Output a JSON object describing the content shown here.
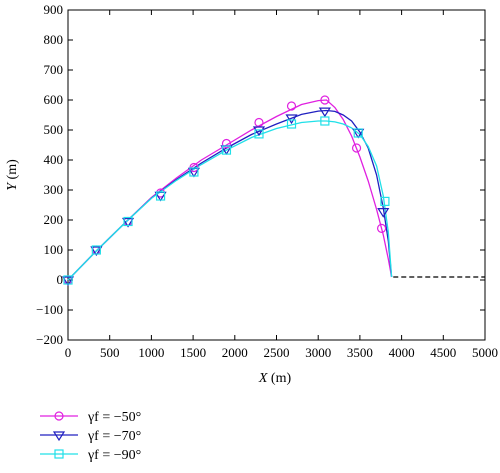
{
  "chart_data": {
    "type": "line",
    "xlabel": "X (m)",
    "ylabel": "Y (m)",
    "xlim": [
      0,
      5000
    ],
    "ylim": [
      -200,
      900
    ],
    "xticks": [
      0,
      500,
      1000,
      1500,
      2000,
      2500,
      3000,
      3500,
      4000,
      4500,
      5000
    ],
    "yticks": [
      -200,
      -100,
      0,
      100,
      200,
      300,
      400,
      500,
      600,
      700,
      800,
      900
    ],
    "grid": false,
    "legend_position": "bottom-left",
    "series": [
      {
        "name": "γf = −50°",
        "color": "#e020e0",
        "marker": "circle",
        "x": [
          0,
          350,
          700,
          1000,
          1300,
          1600,
          1900,
          2200,
          2500,
          2800,
          3000,
          3100,
          3200,
          3300,
          3400,
          3500,
          3600,
          3700,
          3780,
          3840,
          3880
        ],
        "y": [
          0,
          100,
          195,
          275,
          340,
          400,
          450,
          500,
          545,
          585,
          598,
          600,
          575,
          535,
          480,
          410,
          330,
          235,
          150,
          70,
          10
        ],
        "markers": [
          [
            0,
            0
          ],
          [
            340,
            100
          ],
          [
            720,
            195
          ],
          [
            1110,
            290
          ],
          [
            1510,
            375
          ],
          [
            1900,
            455
          ],
          [
            2290,
            525
          ],
          [
            2680,
            580
          ],
          [
            3080,
            600
          ],
          [
            3460,
            440
          ],
          [
            3760,
            172
          ]
        ]
      },
      {
        "name": "γf = −70°",
        "color": "#2020c0",
        "marker": "triangle-down",
        "x": [
          0,
          350,
          700,
          1000,
          1300,
          1600,
          1900,
          2200,
          2500,
          2800,
          3000,
          3100,
          3200,
          3300,
          3400,
          3500,
          3600,
          3700,
          3780,
          3840,
          3880
        ],
        "y": [
          0,
          100,
          195,
          273,
          335,
          390,
          440,
          485,
          520,
          552,
          563,
          565,
          562,
          550,
          530,
          493,
          440,
          350,
          240,
          130,
          10
        ],
        "markers": [
          [
            0,
            0
          ],
          [
            340,
            100
          ],
          [
            720,
            195
          ],
          [
            1110,
            282
          ],
          [
            1510,
            362
          ],
          [
            1900,
            437
          ],
          [
            2290,
            500
          ],
          [
            2680,
            540
          ],
          [
            3080,
            563
          ],
          [
            3480,
            492
          ],
          [
            3780,
            228
          ]
        ]
      },
      {
        "name": "γf = −90°",
        "color": "#20e0e8",
        "marker": "square",
        "x": [
          0,
          350,
          700,
          1000,
          1300,
          1600,
          1900,
          2200,
          2500,
          2800,
          3000,
          3100,
          3200,
          3300,
          3400,
          3500,
          3600,
          3700,
          3780,
          3840,
          3880
        ],
        "y": [
          0,
          100,
          195,
          272,
          332,
          385,
          433,
          475,
          505,
          525,
          530,
          530,
          527,
          520,
          507,
          485,
          445,
          380,
          280,
          160,
          10
        ],
        "markers": [
          [
            0,
            0
          ],
          [
            340,
            100
          ],
          [
            720,
            195
          ],
          [
            1110,
            280
          ],
          [
            1510,
            360
          ],
          [
            1900,
            433
          ],
          [
            2290,
            487
          ],
          [
            2680,
            520
          ],
          [
            3080,
            530
          ],
          [
            3480,
            490
          ],
          [
            3800,
            262
          ]
        ]
      }
    ],
    "reference_line": {
      "x": [
        3900,
        5000
      ],
      "y": [
        10,
        10
      ],
      "style": "dashed",
      "color": "#000000"
    }
  }
}
